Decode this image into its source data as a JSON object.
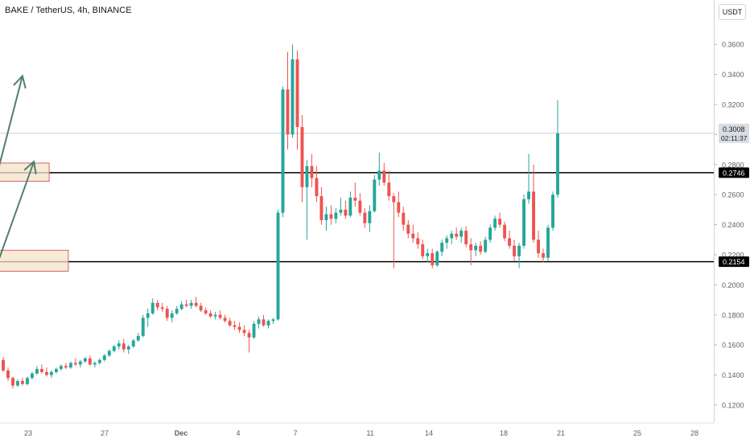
{
  "header": {
    "title": "BAKE / TetherUS, 4h, BINANCE",
    "currency": "USDT"
  },
  "colors": {
    "up": "#26a69a",
    "down": "#ef5350",
    "zone_fill": "#f6e3c9",
    "zone_border": "#d4676a",
    "arrow": "#4f7f72",
    "level_line": "#000000",
    "axis_text": "#5d606b"
  },
  "chart_data": {
    "type": "candlestick",
    "title": "BAKE / TetherUS, 4h, BINANCE",
    "y_axis": {
      "range": [
        0.11,
        0.37
      ],
      "ticks": [
        "0.1200",
        "0.1400",
        "0.1600",
        "0.1800",
        "0.2000",
        "0.2200",
        "0.2400",
        "0.2600",
        "0.2800",
        "0.3000",
        "0.3200",
        "0.3400",
        "0.3600"
      ]
    },
    "x_axis": {
      "ticks": [
        "23",
        "27",
        "Dec",
        "4",
        "7",
        "11",
        "14",
        "18",
        "21",
        "25",
        "28"
      ]
    },
    "current_price": {
      "value": "0.3008",
      "countdown": "02:11:37"
    },
    "horizontal_levels": [
      {
        "value": 0.2746,
        "label": "0.2746"
      },
      {
        "value": 0.2154,
        "label": "0.2154"
      }
    ],
    "zones": [
      {
        "start_day": 7.0,
        "end_day": 24.1,
        "low": 0.2689,
        "high": 0.281
      },
      {
        "start_day": 12.8,
        "end_day": 25.1,
        "low": 0.209,
        "high": 0.223
      }
    ],
    "arrows": [
      {
        "from_day": 21.4,
        "from_price": 0.275,
        "to_day": 22.7,
        "to_price": 0.339
      },
      {
        "from_day": 21.5,
        "from_price": 0.218,
        "to_day": 23.3,
        "to_price": 0.282
      }
    ],
    "series": [
      {
        "values": [
          [
            0.15,
            0.152,
            0.142,
            0.143
          ],
          [
            0.143,
            0.145,
            0.136,
            0.138
          ],
          [
            0.138,
            0.139,
            0.131,
            0.133
          ],
          [
            0.133,
            0.137,
            0.132,
            0.136
          ],
          [
            0.136,
            0.138,
            0.133,
            0.134
          ],
          [
            0.134,
            0.139,
            0.133,
            0.138
          ],
          [
            0.138,
            0.142,
            0.137,
            0.141
          ],
          [
            0.141,
            0.146,
            0.14,
            0.144
          ],
          [
            0.144,
            0.147,
            0.141,
            0.142
          ],
          [
            0.142,
            0.145,
            0.139,
            0.14
          ],
          [
            0.14,
            0.143,
            0.138,
            0.142
          ],
          [
            0.142,
            0.145,
            0.141,
            0.144
          ],
          [
            0.144,
            0.147,
            0.143,
            0.146
          ],
          [
            0.146,
            0.148,
            0.144,
            0.145
          ],
          [
            0.145,
            0.149,
            0.144,
            0.148
          ],
          [
            0.148,
            0.151,
            0.146,
            0.147
          ],
          [
            0.147,
            0.15,
            0.145,
            0.149
          ],
          [
            0.149,
            0.152,
            0.148,
            0.151
          ],
          [
            0.151,
            0.153,
            0.146,
            0.147
          ],
          [
            0.147,
            0.149,
            0.145,
            0.148
          ],
          [
            0.148,
            0.151,
            0.147,
            0.15
          ],
          [
            0.15,
            0.154,
            0.149,
            0.153
          ],
          [
            0.153,
            0.157,
            0.152,
            0.156
          ],
          [
            0.156,
            0.16,
            0.155,
            0.159
          ],
          [
            0.159,
            0.163,
            0.157,
            0.161
          ],
          [
            0.161,
            0.164,
            0.155,
            0.157
          ],
          [
            0.157,
            0.16,
            0.154,
            0.159
          ],
          [
            0.159,
            0.164,
            0.158,
            0.163
          ],
          [
            0.163,
            0.168,
            0.162,
            0.166
          ],
          [
            0.166,
            0.18,
            0.165,
            0.178
          ],
          [
            0.178,
            0.184,
            0.172,
            0.181
          ],
          [
            0.181,
            0.191,
            0.18,
            0.188
          ],
          [
            0.188,
            0.19,
            0.183,
            0.185
          ],
          [
            0.185,
            0.188,
            0.182,
            0.184
          ],
          [
            0.184,
            0.186,
            0.176,
            0.178
          ],
          [
            0.178,
            0.183,
            0.175,
            0.181
          ],
          [
            0.181,
            0.186,
            0.18,
            0.184
          ],
          [
            0.184,
            0.189,
            0.183,
            0.187
          ],
          [
            0.187,
            0.19,
            0.185,
            0.186
          ],
          [
            0.186,
            0.19,
            0.184,
            0.188
          ],
          [
            0.188,
            0.192,
            0.185,
            0.186
          ],
          [
            0.186,
            0.188,
            0.182,
            0.183
          ],
          [
            0.183,
            0.185,
            0.18,
            0.181
          ],
          [
            0.181,
            0.183,
            0.178,
            0.179
          ],
          [
            0.179,
            0.182,
            0.177,
            0.18
          ],
          [
            0.18,
            0.183,
            0.177,
            0.178
          ],
          [
            0.178,
            0.18,
            0.175,
            0.176
          ],
          [
            0.176,
            0.178,
            0.172,
            0.173
          ],
          [
            0.173,
            0.176,
            0.17,
            0.172
          ],
          [
            0.172,
            0.175,
            0.168,
            0.17
          ],
          [
            0.17,
            0.173,
            0.166,
            0.168
          ],
          [
            0.168,
            0.17,
            0.155,
            0.165
          ],
          [
            0.165,
            0.176,
            0.164,
            0.174
          ],
          [
            0.174,
            0.179,
            0.171,
            0.177
          ],
          [
            0.177,
            0.18,
            0.172,
            0.173
          ],
          [
            0.173,
            0.177,
            0.171,
            0.176
          ],
          [
            0.176,
            0.178,
            0.174,
            0.177
          ],
          [
            0.177,
            0.25,
            0.176,
            0.248
          ],
          [
            0.248,
            0.332,
            0.245,
            0.33
          ],
          [
            0.33,
            0.355,
            0.29,
            0.3
          ],
          [
            0.3,
            0.36,
            0.298,
            0.35
          ],
          [
            0.35,
            0.356,
            0.29,
            0.305
          ],
          [
            0.305,
            0.313,
            0.255,
            0.265
          ],
          [
            0.265,
            0.283,
            0.23,
            0.279
          ],
          [
            0.279,
            0.287,
            0.265,
            0.271
          ],
          [
            0.271,
            0.279,
            0.255,
            0.259
          ],
          [
            0.259,
            0.265,
            0.24,
            0.243
          ],
          [
            0.243,
            0.252,
            0.236,
            0.247
          ],
          [
            0.247,
            0.253,
            0.24,
            0.244
          ],
          [
            0.244,
            0.251,
            0.241,
            0.248
          ],
          [
            0.248,
            0.258,
            0.246,
            0.25
          ],
          [
            0.25,
            0.256,
            0.244,
            0.246
          ],
          [
            0.246,
            0.262,
            0.245,
            0.258
          ],
          [
            0.258,
            0.268,
            0.252,
            0.256
          ],
          [
            0.256,
            0.261,
            0.246,
            0.248
          ],
          [
            0.248,
            0.251,
            0.238,
            0.241
          ],
          [
            0.241,
            0.253,
            0.235,
            0.249
          ],
          [
            0.249,
            0.273,
            0.248,
            0.27
          ],
          [
            0.27,
            0.288,
            0.266,
            0.276
          ],
          [
            0.276,
            0.281,
            0.266,
            0.268
          ],
          [
            0.268,
            0.276,
            0.256,
            0.259
          ],
          [
            0.259,
            0.261,
            0.211,
            0.255
          ],
          [
            0.255,
            0.262,
            0.245,
            0.248
          ],
          [
            0.248,
            0.252,
            0.236,
            0.24
          ],
          [
            0.24,
            0.243,
            0.231,
            0.234
          ],
          [
            0.234,
            0.24,
            0.228,
            0.231
          ],
          [
            0.231,
            0.235,
            0.224,
            0.227
          ],
          [
            0.227,
            0.23,
            0.217,
            0.219
          ],
          [
            0.219,
            0.224,
            0.215,
            0.221
          ],
          [
            0.221,
            0.224,
            0.211,
            0.213
          ],
          [
            0.213,
            0.223,
            0.212,
            0.222
          ],
          [
            0.222,
            0.23,
            0.219,
            0.228
          ],
          [
            0.228,
            0.233,
            0.224,
            0.231
          ],
          [
            0.231,
            0.236,
            0.227,
            0.234
          ],
          [
            0.234,
            0.238,
            0.23,
            0.232
          ],
          [
            0.232,
            0.238,
            0.228,
            0.236
          ],
          [
            0.236,
            0.239,
            0.225,
            0.227
          ],
          [
            0.227,
            0.231,
            0.213,
            0.223
          ],
          [
            0.223,
            0.228,
            0.219,
            0.226
          ],
          [
            0.226,
            0.229,
            0.22,
            0.222
          ],
          [
            0.222,
            0.232,
            0.221,
            0.23
          ],
          [
            0.23,
            0.24,
            0.228,
            0.238
          ],
          [
            0.238,
            0.246,
            0.236,
            0.244
          ],
          [
            0.244,
            0.248,
            0.238,
            0.24
          ],
          [
            0.24,
            0.242,
            0.229,
            0.231
          ],
          [
            0.231,
            0.236,
            0.224,
            0.226
          ],
          [
            0.226,
            0.23,
            0.216,
            0.219
          ],
          [
            0.219,
            0.228,
            0.211,
            0.226
          ],
          [
            0.226,
            0.26,
            0.224,
            0.257
          ],
          [
            0.257,
            0.287,
            0.254,
            0.262
          ],
          [
            0.262,
            0.28,
            0.228,
            0.23
          ],
          [
            0.23,
            0.236,
            0.218,
            0.221
          ],
          [
            0.221,
            0.224,
            0.215,
            0.218
          ],
          [
            0.218,
            0.24,
            0.216,
            0.238
          ],
          [
            0.238,
            0.262,
            0.236,
            0.26
          ],
          [
            0.26,
            0.323,
            0.258,
            0.3008
          ]
        ]
      }
    ]
  }
}
